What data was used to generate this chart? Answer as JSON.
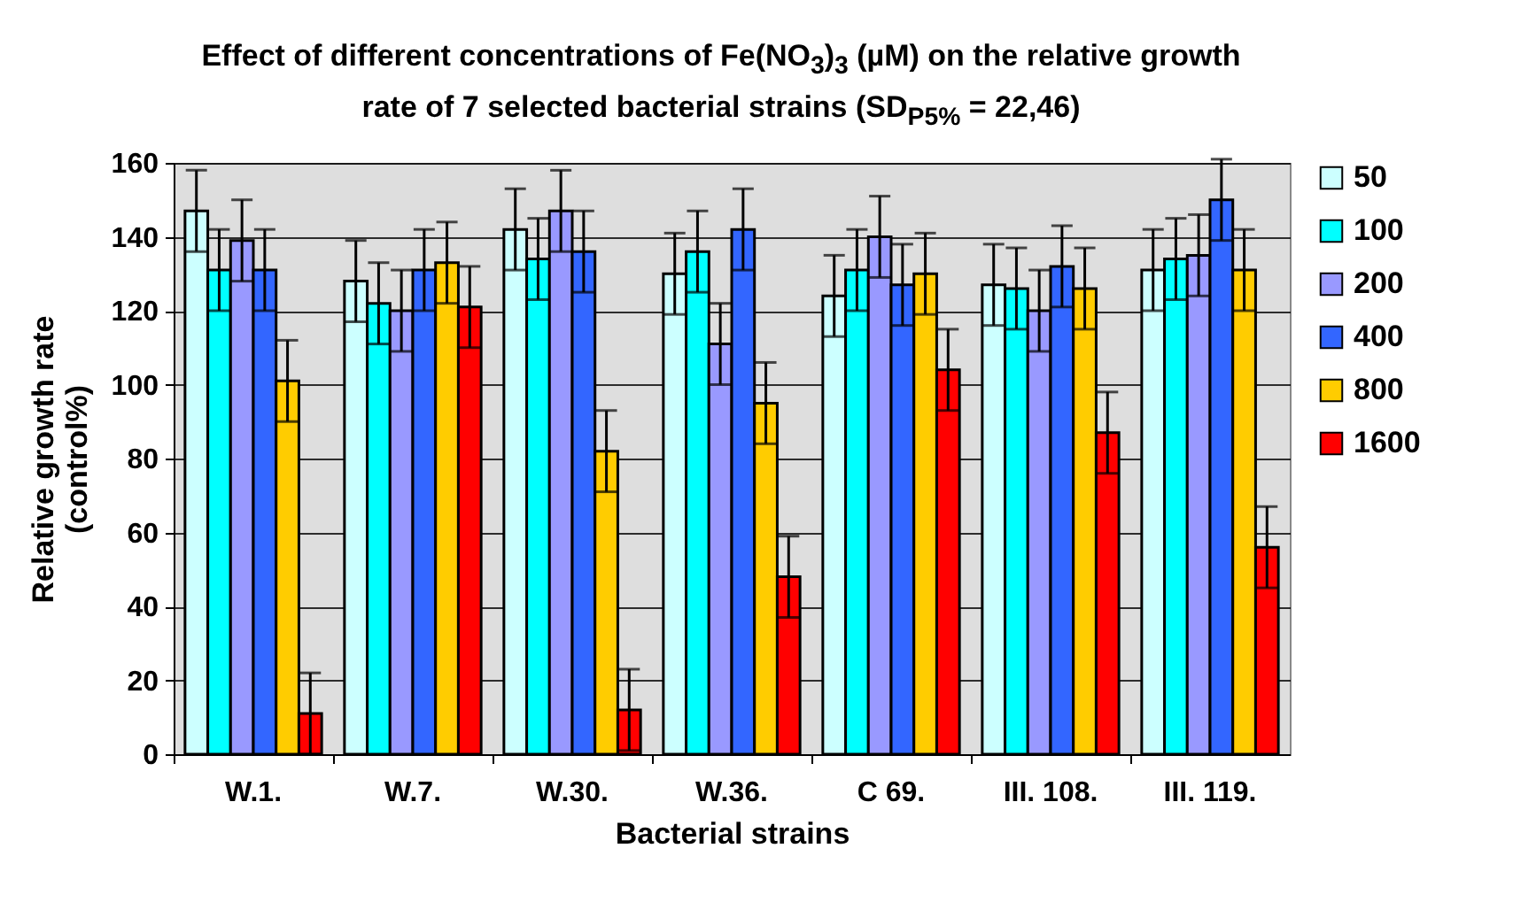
{
  "chart_data": {
    "type": "bar",
    "title": "Effect of different concentrations of Fe(NO$_{3}$)$_{3}$ (µM) on the relative growth rate of 7 selected bacterial strains (SD$_{P5%}$ = 22,46)",
    "xlabel": "Bacterial strains",
    "ylabel": "Relative growth rate\n(control%)",
    "categories": [
      "W.1.",
      "W.7.",
      "W.30.",
      "W.36.",
      "C 69.",
      "III. 108.",
      "III. 119."
    ],
    "series": [
      {
        "name": "50",
        "color": "#ccffff",
        "values": [
          147,
          128,
          142,
          130,
          124,
          127,
          131
        ],
        "errors": [
          11,
          11,
          11,
          11,
          11,
          11,
          11
        ]
      },
      {
        "name": "100",
        "color": "#00ffff",
        "values": [
          131,
          122,
          134,
          136,
          131,
          126,
          134
        ],
        "errors": [
          11,
          11,
          11,
          11,
          11,
          11,
          11
        ]
      },
      {
        "name": "200",
        "color": "#9999ff",
        "values": [
          139,
          120,
          147,
          111,
          140,
          120,
          135
        ],
        "errors": [
          11,
          11,
          11,
          11,
          11,
          11,
          11
        ]
      },
      {
        "name": "400",
        "color": "#3366ff",
        "values": [
          131,
          131,
          136,
          142,
          127,
          132,
          150
        ],
        "errors": [
          11,
          11,
          11,
          11,
          11,
          11,
          11
        ]
      },
      {
        "name": "800",
        "color": "#ffcc00",
        "values": [
          101,
          133,
          82,
          95,
          130,
          126,
          131
        ],
        "errors": [
          11,
          11,
          11,
          11,
          11,
          11,
          11
        ]
      },
      {
        "name": "1600",
        "color": "#ff0000",
        "values": [
          11,
          121,
          12,
          48,
          104,
          87,
          56
        ],
        "errors": [
          11,
          11,
          11,
          11,
          11,
          11,
          11
        ]
      }
    ],
    "ylim": [
      0,
      160
    ],
    "yticks": [
      0,
      20,
      40,
      60,
      80,
      100,
      120,
      140,
      160
    ],
    "grid": "y",
    "legend": "right"
  }
}
